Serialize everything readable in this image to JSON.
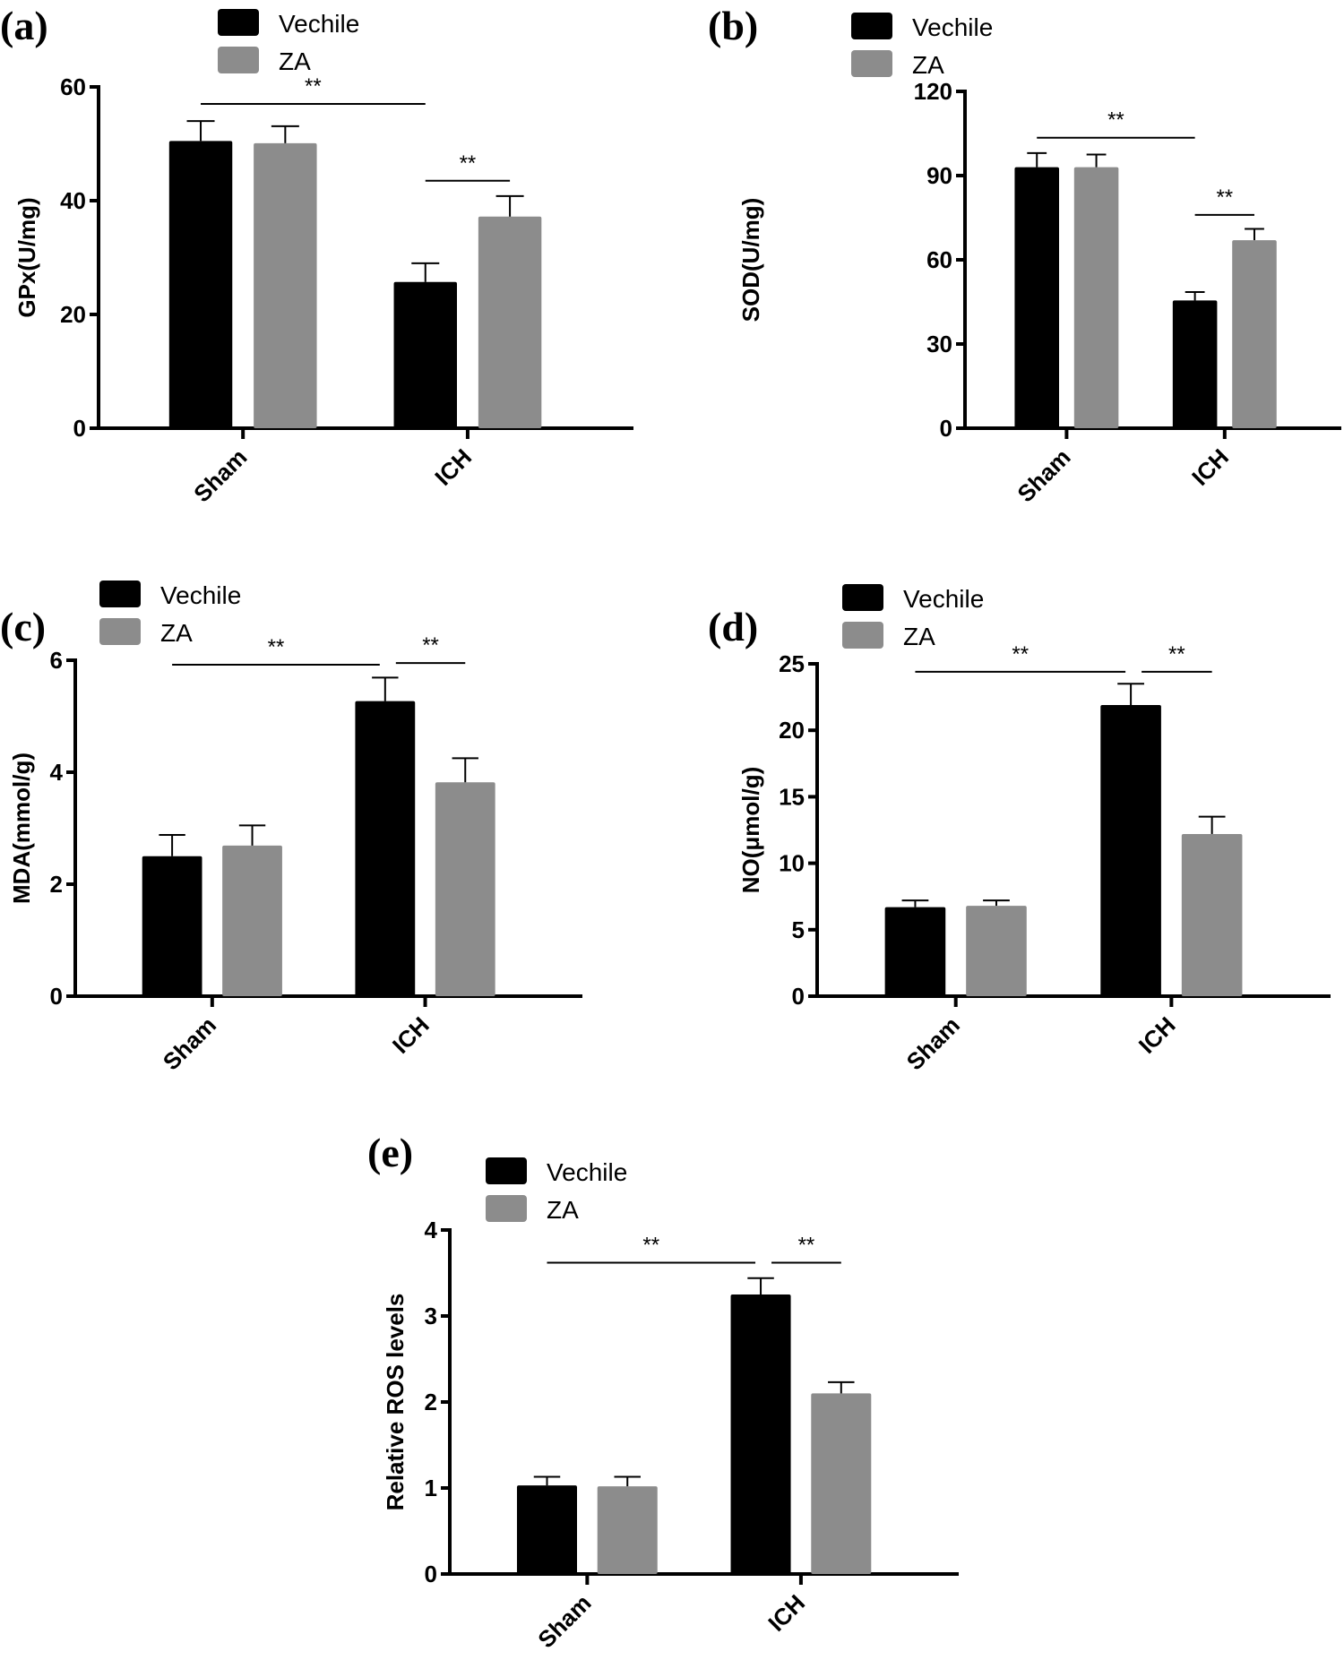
{
  "colors": {
    "vehicle": "#000000",
    "za": "#8c8c8c"
  },
  "chart_data": [
    {
      "type": "bar",
      "panel_label": "(a)",
      "categories": [
        "Sham",
        "ICH"
      ],
      "ylabel": "GPx(U/mg)",
      "ylim": [
        0,
        60
      ],
      "yticks": [
        "0",
        "20",
        "40",
        "60"
      ],
      "legend": [
        "Vechile",
        "ZA"
      ],
      "legend_position": "top-left",
      "series": [
        {
          "name": "Vechile",
          "values": [
            50.5,
            25.7
          ],
          "errors": [
            3.5,
            3.3
          ]
        },
        {
          "name": "ZA",
          "values": [
            50.1,
            37.2
          ],
          "errors": [
            3.0,
            3.6
          ]
        }
      ],
      "significance": [
        {
          "label": "**",
          "from": "Sham-Vechile",
          "to": "ICH-Vechile",
          "y": 57
        },
        {
          "label": "**",
          "from": "ICH-Vechile",
          "to": "ICH-ZA",
          "y": 43.5
        }
      ]
    },
    {
      "type": "bar",
      "panel_label": "(b)",
      "categories": [
        "Sham",
        "ICH"
      ],
      "ylabel": "SOD(U/mg)",
      "ylim": [
        0,
        120
      ],
      "yticks": [
        "0",
        "30",
        "60",
        "90",
        "120"
      ],
      "legend": [
        "Vechile",
        "ZA"
      ],
      "legend_position": "top-left",
      "series": [
        {
          "name": "Vechile",
          "values": [
            93,
            45.5
          ],
          "errors": [
            5,
            3
          ]
        },
        {
          "name": "ZA",
          "values": [
            93,
            67
          ],
          "errors": [
            4.5,
            4
          ]
        }
      ],
      "significance": [
        {
          "label": "**",
          "from": "Sham-Vechile",
          "to": "ICH-Vechile",
          "y": 103.5
        },
        {
          "label": "**",
          "from": "ICH-Vechile",
          "to": "ICH-ZA",
          "y": 76
        }
      ]
    },
    {
      "type": "bar",
      "panel_label": "(c)",
      "categories": [
        "Sham",
        "ICH"
      ],
      "ylabel": "MDA(mmol/g)",
      "ylim": [
        0,
        6
      ],
      "yticks": [
        "0",
        "2",
        "4",
        "6"
      ],
      "legend": [
        "Vechile",
        "ZA"
      ],
      "legend_position": "top-left",
      "series": [
        {
          "name": "Vechile",
          "values": [
            2.5,
            5.27
          ],
          "errors": [
            0.38,
            0.42
          ]
        },
        {
          "name": "ZA",
          "values": [
            2.69,
            3.82
          ],
          "errors": [
            0.36,
            0.43
          ]
        }
      ],
      "significance": [
        {
          "label": "**",
          "from": "Sham-Vechile",
          "to": "ICH-Vechile",
          "y": 5.92
        },
        {
          "label": "**",
          "from": "ICH-Vechile",
          "to": "ICH-ZA",
          "y": 5.95
        }
      ]
    },
    {
      "type": "bar",
      "panel_label": "(d)",
      "categories": [
        "Sham",
        "ICH"
      ],
      "ylabel": "NO(μmol/g)",
      "ylim": [
        0,
        25
      ],
      "yticks": [
        "0",
        "5",
        "10",
        "15",
        "20",
        "25"
      ],
      "legend": [
        "Vechile",
        "ZA"
      ],
      "legend_position": "top-left",
      "series": [
        {
          "name": "Vechile",
          "values": [
            6.7,
            21.9
          ],
          "errors": [
            0.5,
            1.6
          ]
        },
        {
          "name": "ZA",
          "values": [
            6.8,
            12.2
          ],
          "errors": [
            0.4,
            1.3
          ]
        }
      ],
      "significance": [
        {
          "label": "**",
          "from": "Sham-Vechile",
          "to": "ICH-Vechile",
          "y": 24.4
        },
        {
          "label": "**",
          "from": "ICH-Vechile",
          "to": "ICH-ZA",
          "y": 24.4
        }
      ]
    },
    {
      "type": "bar",
      "panel_label": "(e)",
      "categories": [
        "Sham",
        "ICH"
      ],
      "ylabel": "Relative ROS  levels",
      "ylim": [
        0,
        4
      ],
      "yticks": [
        "0",
        "1",
        "2",
        "3",
        "4"
      ],
      "legend": [
        "Vechile",
        "ZA"
      ],
      "legend_position": "top-left",
      "series": [
        {
          "name": "Vechile",
          "values": [
            1.03,
            3.25
          ],
          "errors": [
            0.1,
            0.19
          ]
        },
        {
          "name": "ZA",
          "values": [
            1.02,
            2.1
          ],
          "errors": [
            0.11,
            0.13
          ]
        }
      ],
      "significance": [
        {
          "label": "**",
          "from": "Sham-Vechile",
          "to": "ICH-Vechile",
          "y": 3.62
        },
        {
          "label": "**",
          "from": "ICH-Vechile",
          "to": "ICH-ZA",
          "y": 3.62
        }
      ]
    }
  ]
}
